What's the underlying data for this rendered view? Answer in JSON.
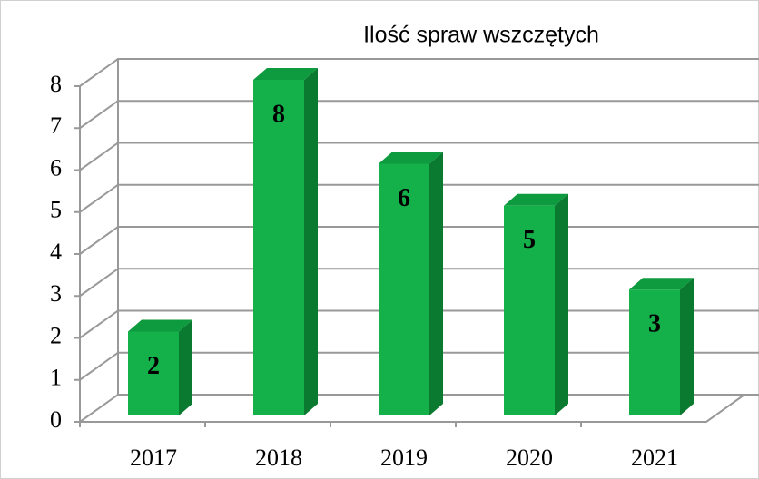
{
  "chart_data": {
    "type": "bar3d",
    "title": "Ilość spraw wszczętych",
    "categories": [
      "2017",
      "2018",
      "2019",
      "2020",
      "2021"
    ],
    "values": [
      2,
      8,
      6,
      5,
      3
    ],
    "color": "#14b04a",
    "ylim": [
      0,
      8
    ],
    "yticks": [
      0,
      1,
      2,
      3,
      4,
      5,
      6,
      7,
      8
    ],
    "grid": true
  }
}
